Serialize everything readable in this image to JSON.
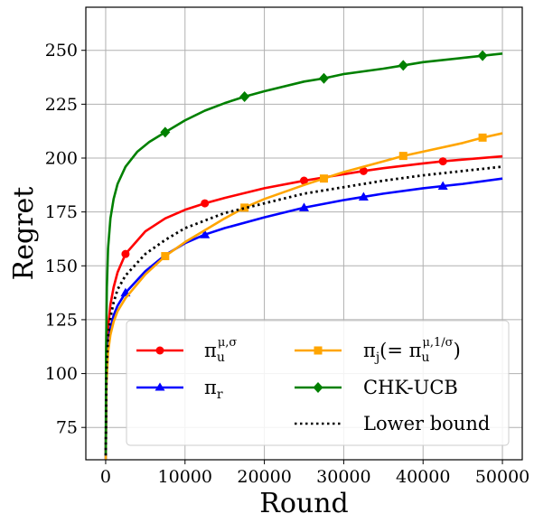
{
  "chart_data": {
    "type": "line",
    "xlabel": "Round",
    "ylabel": "Regret",
    "xlim": [
      -2500,
      52500
    ],
    "ylim": [
      60,
      270
    ],
    "xticks": [
      0,
      10000,
      20000,
      30000,
      40000,
      50000
    ],
    "xtick_labels": [
      "0",
      "10000",
      "20000",
      "30000",
      "40000",
      "50000"
    ],
    "yticks": [
      75,
      100,
      125,
      150,
      175,
      200,
      225,
      250
    ],
    "ytick_labels": [
      "75",
      "100",
      "125",
      "150",
      "175",
      "200",
      "225",
      "250"
    ],
    "grid": true,
    "legend_position": "lower-right",
    "series": [
      {
        "name": "π_u^{μ,σ}",
        "color": "#ff0000",
        "marker": "circle",
        "linestyle": "solid",
        "x": [
          10,
          100,
          300,
          600,
          1000,
          1500,
          2500,
          5000,
          7500,
          10000,
          12500,
          15000,
          20000,
          25000,
          30000,
          32500,
          35000,
          40000,
          42500,
          45000,
          50000
        ],
        "y": [
          62,
          104,
          121,
          132,
          140,
          147,
          155.5,
          166,
          172,
          176,
          179,
          181.5,
          186,
          189.5,
          192.5,
          194,
          195.3,
          197.5,
          198.5,
          199.3,
          200.8
        ],
        "marker_x": [
          2500,
          12500,
          25000,
          32500,
          42500
        ],
        "marker_y": [
          155.5,
          179,
          189.5,
          194,
          198.5
        ]
      },
      {
        "name": "π_r",
        "color": "#0000ff",
        "marker": "triangle",
        "linestyle": "solid",
        "x": [
          10,
          100,
          300,
          600,
          1000,
          1500,
          2500,
          5000,
          7500,
          10000,
          12500,
          15000,
          20000,
          25000,
          30000,
          32500,
          35000,
          40000,
          42500,
          45000,
          50000
        ],
        "y": [
          60,
          98,
          113,
          121,
          127,
          131.5,
          137.5,
          147.5,
          155,
          160.5,
          164.5,
          167.5,
          172.5,
          177,
          180.5,
          182,
          183.5,
          186,
          187,
          188,
          190.5
        ],
        "marker_x": [
          2500,
          12500,
          25000,
          32500,
          42500
        ],
        "marker_y": [
          137.5,
          164.5,
          177,
          182,
          187
        ]
      },
      {
        "name": "π_j(= π_u^{μ,1/σ})",
        "color": "#ffa500",
        "marker": "square",
        "linestyle": "solid",
        "x": [
          10,
          100,
          300,
          600,
          1000,
          1500,
          2500,
          5000,
          7500,
          10000,
          12500,
          15000,
          17500,
          20000,
          25000,
          27500,
          30000,
          35000,
          37500,
          40000,
          45000,
          47500,
          50000
        ],
        "y": [
          60,
          95,
          110,
          118,
          124,
          129,
          135,
          146,
          154.5,
          161,
          166.5,
          172,
          177,
          181,
          187.5,
          190.5,
          193.5,
          198.5,
          201,
          203,
          207,
          209.5,
          211.5
        ],
        "marker_x": [
          7500,
          17500,
          27500,
          37500,
          47500
        ],
        "marker_y": [
          154.5,
          177,
          190.5,
          201,
          209.5
        ]
      },
      {
        "name": "CHK-UCB",
        "color": "#008000",
        "marker": "diamond",
        "linestyle": "solid",
        "x": [
          10,
          50,
          150,
          300,
          600,
          1000,
          1500,
          2500,
          4000,
          5500,
          7500,
          10000,
          12500,
          15000,
          17500,
          20000,
          25000,
          27500,
          30000,
          35000,
          37500,
          40000,
          45000,
          47500,
          50000
        ],
        "y": [
          62,
          110,
          140,
          158,
          172,
          181,
          188,
          196,
          203,
          207.5,
          212,
          217.5,
          222,
          225.5,
          228.5,
          231,
          235.5,
          237,
          239,
          241.5,
          243,
          244.5,
          246.5,
          247.5,
          248.5
        ],
        "marker_x": [
          7500,
          17500,
          27500,
          37500,
          47500
        ],
        "marker_y": [
          212,
          228.5,
          237,
          243,
          247.5
        ]
      },
      {
        "name": "Lower bound",
        "color": "#000000",
        "marker": "none",
        "linestyle": "dotted",
        "x": [
          10,
          100,
          300,
          600,
          1000,
          1500,
          2500,
          5000,
          7500,
          10000,
          12500,
          15000,
          20000,
          25000,
          30000,
          35000,
          40000,
          45000,
          50000
        ],
        "y": [
          62,
          101,
          117,
          126,
          133,
          139,
          145.5,
          155.5,
          162,
          167.5,
          171,
          174.5,
          179,
          183.5,
          186.5,
          189.5,
          192,
          194,
          196
        ]
      }
    ]
  }
}
